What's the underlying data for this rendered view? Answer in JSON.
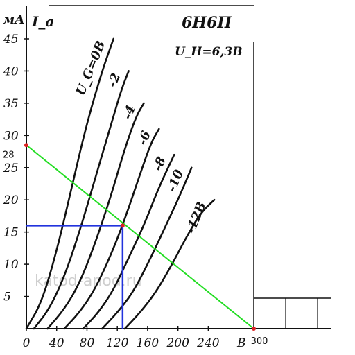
{
  "chart_data": {
    "type": "line",
    "title": "6Н6П",
    "subtitle": "U_H=6,3В",
    "y_unit": "мА",
    "y_symbol": "I_a",
    "x_unit": "В",
    "ylim": [
      0,
      45
    ],
    "xlim": [
      0,
      300
    ],
    "y_ticks": [
      {
        "value": 5,
        "label": "5"
      },
      {
        "value": 10,
        "label": "10"
      },
      {
        "value": 15,
        "label": "15"
      },
      {
        "value": 20,
        "label": "20"
      },
      {
        "value": 25,
        "label": "25"
      },
      {
        "value": 30,
        "label": "30"
      },
      {
        "value": 35,
        "label": "35"
      },
      {
        "value": 40,
        "label": "40"
      },
      {
        "value": 45,
        "label": "45"
      }
    ],
    "x_ticks": [
      {
        "value": 0,
        "label": "0"
      },
      {
        "value": 40,
        "label": "40"
      },
      {
        "value": 80,
        "label": "80"
      },
      {
        "value": 120,
        "label": "120"
      },
      {
        "value": 160,
        "label": "160"
      },
      {
        "value": 200,
        "label": "200"
      },
      {
        "value": 240,
        "label": "240"
      }
    ],
    "series": [
      {
        "name": "U_G=0В",
        "label": "U_G=0В",
        "points": [
          [
            0,
            0
          ],
          [
            20,
            4
          ],
          [
            40,
            12
          ],
          [
            60,
            22
          ],
          [
            80,
            32
          ],
          [
            100,
            40
          ],
          [
            115,
            45
          ]
        ]
      },
      {
        "name": "-2",
        "label": "-2",
        "points": [
          [
            10,
            0
          ],
          [
            30,
            3
          ],
          [
            50,
            8
          ],
          [
            70,
            15
          ],
          [
            90,
            23
          ],
          [
            110,
            31
          ],
          [
            125,
            37
          ],
          [
            135,
            40
          ]
        ]
      },
      {
        "name": "-4",
        "label": "-4",
        "points": [
          [
            28,
            0
          ],
          [
            50,
            3
          ],
          [
            70,
            7
          ],
          [
            90,
            13
          ],
          [
            110,
            20
          ],
          [
            130,
            28
          ],
          [
            145,
            33
          ],
          [
            155,
            35
          ]
        ]
      },
      {
        "name": "-6",
        "label": "-6",
        "points": [
          [
            50,
            0
          ],
          [
            70,
            2.5
          ],
          [
            90,
            6
          ],
          [
            110,
            11
          ],
          [
            130,
            17
          ],
          [
            150,
            24
          ],
          [
            165,
            29
          ],
          [
            175,
            31
          ]
        ]
      },
      {
        "name": "-8",
        "label": "-8",
        "points": [
          [
            75,
            0
          ],
          [
            95,
            2.5
          ],
          [
            115,
            6
          ],
          [
            135,
            11
          ],
          [
            155,
            16
          ],
          [
            175,
            22
          ],
          [
            195,
            27
          ]
        ]
      },
      {
        "name": "-10",
        "label": "-10",
        "points": [
          [
            100,
            0
          ],
          [
            120,
            2.5
          ],
          [
            140,
            5.5
          ],
          [
            160,
            10
          ],
          [
            180,
            15
          ],
          [
            200,
            20
          ],
          [
            218,
            25
          ]
        ]
      },
      {
        "name": "-12В",
        "label": "-12В",
        "points": [
          [
            130,
            0
          ],
          [
            150,
            2.5
          ],
          [
            170,
            5.5
          ],
          [
            190,
            9.5
          ],
          [
            210,
            14
          ],
          [
            230,
            18
          ],
          [
            248,
            20
          ]
        ]
      }
    ],
    "load_line": {
      "x": [
        0,
        300
      ],
      "y": [
        28.5,
        0
      ],
      "color": "#22dd22",
      "endpoint_labels": {
        "y_intercept": "28",
        "x_intercept": "300"
      }
    },
    "operating_point": {
      "x": 127,
      "y": 16,
      "color": "#2233dd"
    },
    "watermark": "katod-anod.ru",
    "grid": false
  }
}
